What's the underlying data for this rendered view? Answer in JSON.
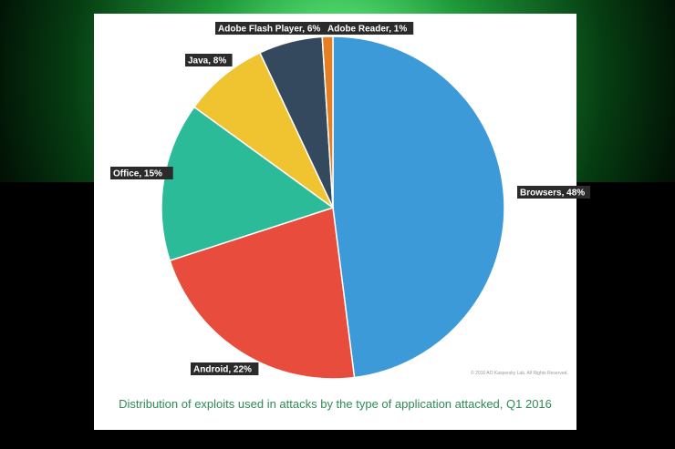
{
  "chart_data": {
    "type": "pie",
    "caption": "Distribution of exploits used in attacks by the type of application attacked, Q1 2016",
    "copyright": "© 2016 AO Kaspersky Lab. All Rights Reserved.",
    "slices": [
      {
        "label": "Browsers, 48%",
        "value": 48,
        "color": "#3d9ad9"
      },
      {
        "label": "Android, 22%",
        "value": 22,
        "color": "#e74c3c"
      },
      {
        "label": "Office, 15%",
        "value": 15,
        "color": "#2bbb99"
      },
      {
        "label": "Java, 8%",
        "value": 8,
        "color": "#f0c330"
      },
      {
        "label": "Adobe Flash Player, 6%",
        "value": 6,
        "color": "#34495e"
      },
      {
        "label": "Adobe Reader, 1%",
        "value": 1,
        "color": "#e67e22"
      }
    ]
  }
}
